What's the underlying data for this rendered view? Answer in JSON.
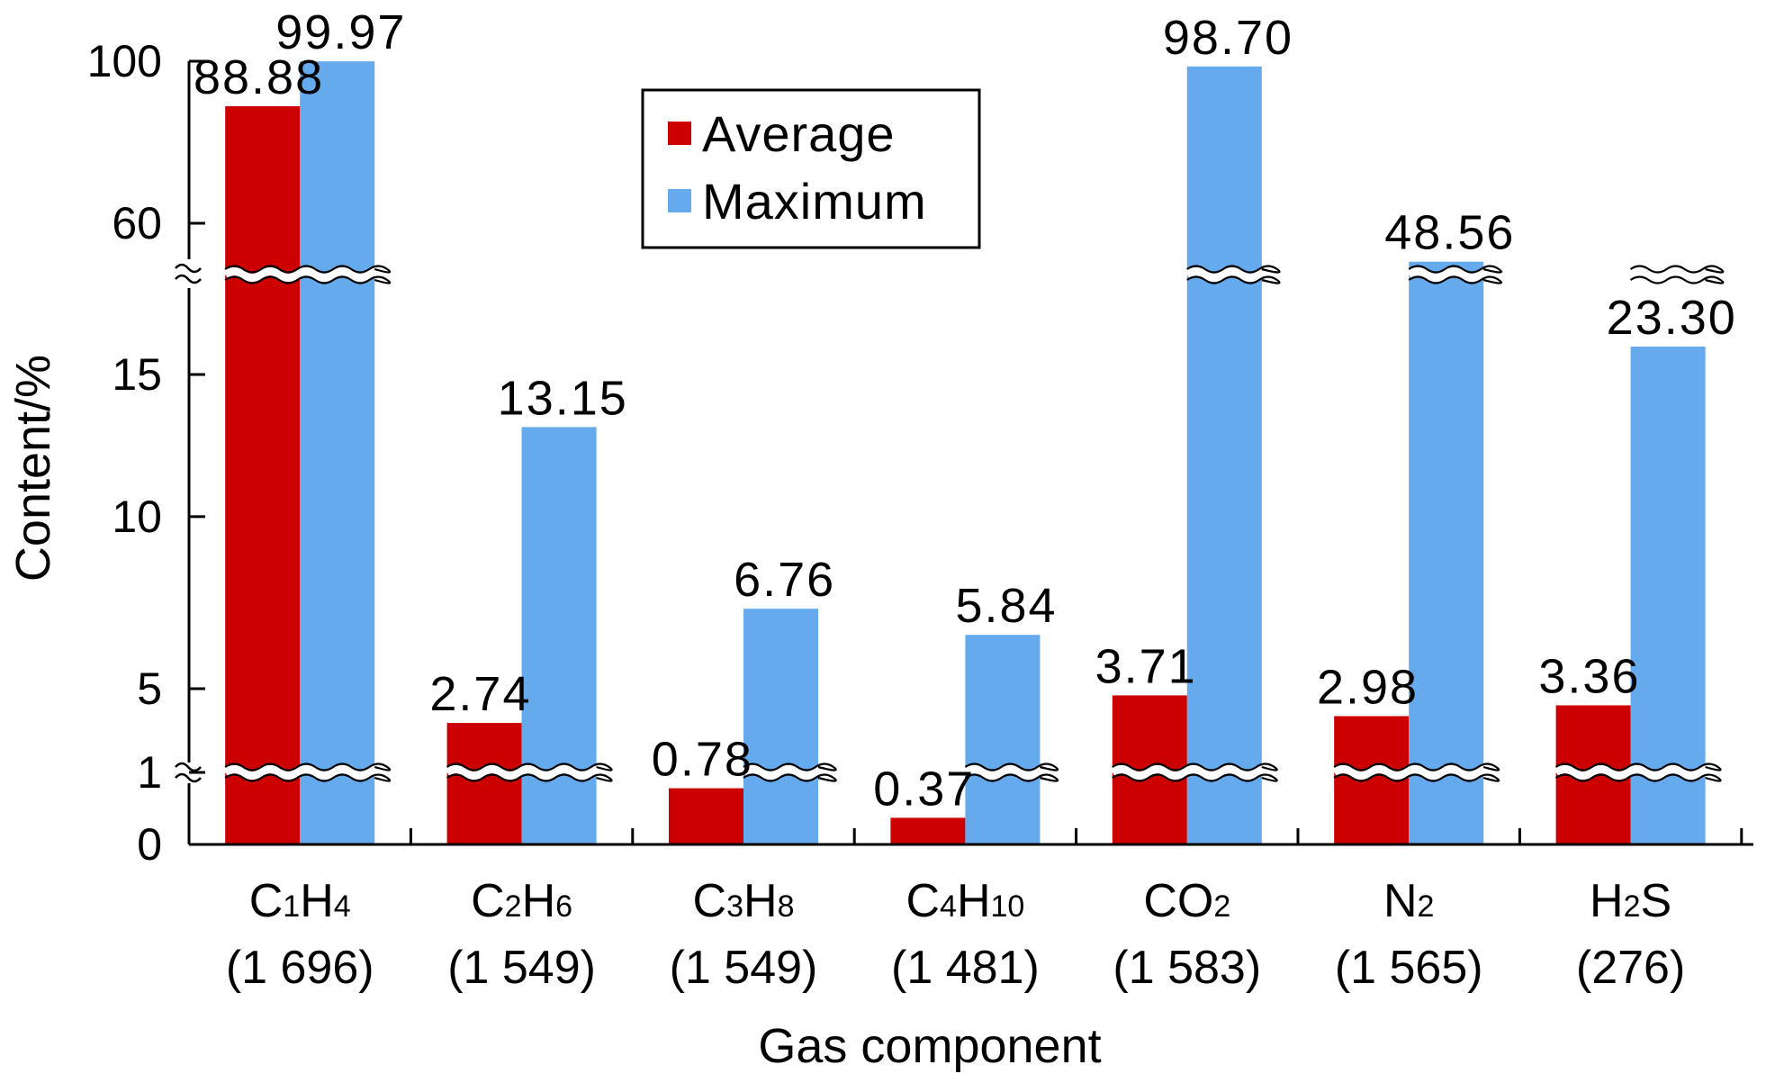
{
  "chart_data": {
    "type": "bar",
    "xlabel": "Gas component",
    "ylabel": "Content/%",
    "y_axis": {
      "scale": "broken",
      "ticks": [
        "0",
        "1",
        "5",
        "10",
        "15",
        "60",
        "100"
      ],
      "breaks_after": [
        "1",
        "15"
      ]
    },
    "legend": {
      "position": "top-center"
    },
    "categories": [
      {
        "formula": [
          [
            "C",
            ""
          ],
          [
            "1",
            "sub"
          ],
          [
            "H",
            ""
          ],
          [
            "4",
            "sub"
          ]
        ],
        "count": "(1 696)"
      },
      {
        "formula": [
          [
            "C",
            ""
          ],
          [
            "2",
            "sub"
          ],
          [
            "H",
            ""
          ],
          [
            "6",
            "sub"
          ]
        ],
        "count": "(1 549)"
      },
      {
        "formula": [
          [
            "C",
            ""
          ],
          [
            "3",
            "sub"
          ],
          [
            "H",
            ""
          ],
          [
            "8",
            "sub"
          ]
        ],
        "count": "(1 549)"
      },
      {
        "formula": [
          [
            "C",
            ""
          ],
          [
            "4",
            "sub"
          ],
          [
            "H",
            ""
          ],
          [
            "10",
            "sub"
          ]
        ],
        "count": "(1 481)"
      },
      {
        "formula": [
          [
            "CO",
            ""
          ],
          [
            "2",
            "sub"
          ]
        ],
        "count": "(1 583)"
      },
      {
        "formula": [
          [
            "N",
            ""
          ],
          [
            "2",
            "sub"
          ]
        ],
        "count": "(1 565)"
      },
      {
        "formula": [
          [
            "H",
            ""
          ],
          [
            "2",
            "sub"
          ],
          [
            "S",
            ""
          ]
        ],
        "count": "(276)"
      }
    ],
    "series": [
      {
        "name": "Average",
        "color": "#cc0000",
        "values": [
          88.88,
          2.74,
          0.78,
          0.37,
          3.71,
          2.98,
          3.36
        ]
      },
      {
        "name": "Maximum",
        "color": "#66aaee",
        "values": [
          99.97,
          13.15,
          6.76,
          5.84,
          98.7,
          48.56,
          23.3
        ]
      }
    ]
  }
}
